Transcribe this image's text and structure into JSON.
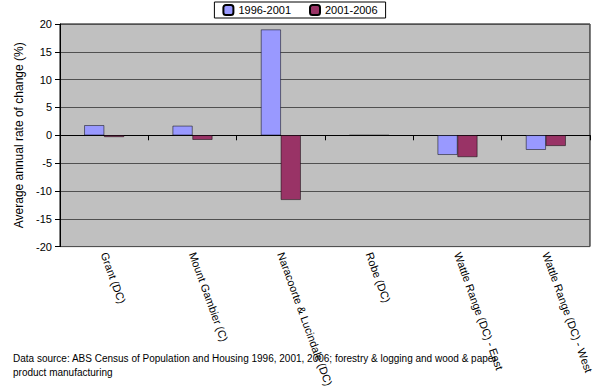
{
  "chart_data": {
    "type": "bar",
    "y_label": "Average annual rate of change (%)",
    "note": "Data source: ABS Census of Population and Housing 1996, 2001, 2006; forestry & logging and wood & paper\nproduct manufacturing",
    "categories": [
      "Grant (DC)",
      "Mount Gambier (C)",
      "Naracoorte & Lucindale (DC)",
      "Robe (DC)",
      "Wattle Range (DC) - East",
      "Wattle Range (DC) - West"
    ],
    "series": [
      {
        "name": "1996-2001",
        "color": "#9999ff",
        "values": [
          1.8,
          1.7,
          19.0,
          0,
          -3.5,
          -2.6
        ]
      },
      {
        "name": "2001-2006",
        "color": "#993366",
        "values": [
          -0.3,
          -0.8,
          -11.6,
          0,
          -3.9,
          -1.9
        ]
      }
    ],
    "ylim": [
      -20,
      20
    ],
    "yticks": [
      -20,
      -15,
      -10,
      -5,
      0,
      5,
      10,
      15,
      20
    ],
    "grid": true,
    "legend": "top"
  }
}
